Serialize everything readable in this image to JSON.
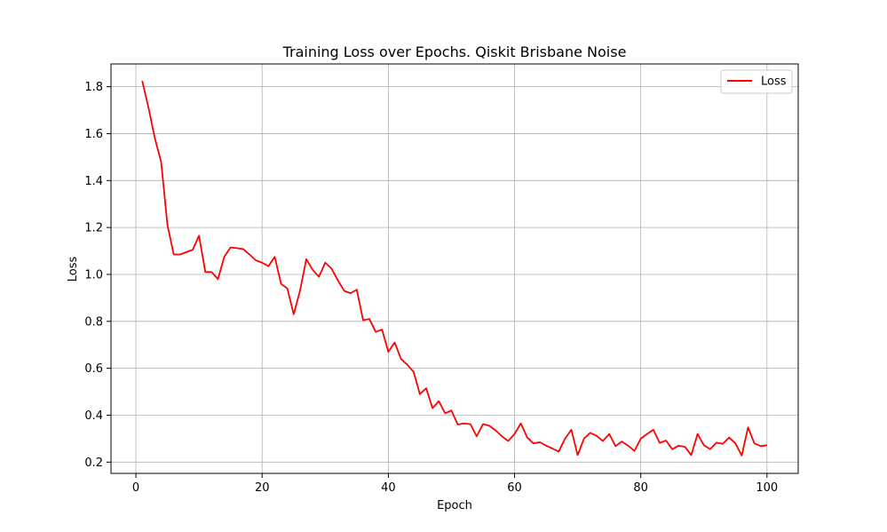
{
  "chart_data": {
    "type": "line",
    "title": "Training Loss over Epochs. Qiskit Brisbane Noise",
    "xlabel": "Epoch",
    "ylabel": "Loss",
    "xlim": [
      -3.95,
      104.95
    ],
    "ylim": [
      0.152,
      1.897
    ],
    "xticks": [
      0,
      20,
      40,
      60,
      80,
      100
    ],
    "yticks": [
      0.2,
      0.4,
      0.6,
      0.8,
      1.0,
      1.2,
      1.4,
      1.6,
      1.8
    ],
    "xtick_labels": [
      "0",
      "20",
      "40",
      "60",
      "80",
      "100"
    ],
    "ytick_labels": [
      "0.2",
      "0.4",
      "0.6",
      "0.8",
      "1.0",
      "1.2",
      "1.4",
      "1.6",
      "1.8"
    ],
    "grid": true,
    "legend": {
      "placement": "top-right",
      "entries": [
        "Loss"
      ]
    },
    "colors": {
      "Loss": "#ff0000"
    },
    "series": [
      {
        "name": "Loss",
        "x": [
          1,
          2,
          3,
          4,
          5,
          6,
          7,
          8,
          9,
          10,
          11,
          12,
          13,
          14,
          15,
          16,
          17,
          18,
          19,
          20,
          21,
          22,
          23,
          24,
          25,
          26,
          27,
          28,
          29,
          30,
          31,
          32,
          33,
          34,
          35,
          36,
          37,
          38,
          39,
          40,
          41,
          42,
          43,
          44,
          45,
          46,
          47,
          48,
          49,
          50,
          51,
          52,
          53,
          54,
          55,
          56,
          57,
          58,
          59,
          60,
          61,
          62,
          63,
          64,
          65,
          66,
          67,
          68,
          69,
          70,
          71,
          72,
          73,
          74,
          75,
          76,
          77,
          78,
          79,
          80,
          81,
          82,
          83,
          84,
          85,
          86,
          87,
          88,
          89,
          90,
          91,
          92,
          93,
          94,
          95,
          96,
          97,
          98,
          99,
          100
        ],
        "values": [
          1.825,
          1.71,
          1.58,
          1.48,
          1.21,
          1.085,
          1.085,
          1.095,
          1.105,
          1.165,
          1.01,
          1.01,
          0.98,
          1.075,
          1.115,
          1.112,
          1.108,
          1.085,
          1.06,
          1.05,
          1.035,
          1.075,
          0.96,
          0.94,
          0.83,
          0.93,
          1.065,
          1.02,
          0.99,
          1.05,
          1.025,
          0.975,
          0.93,
          0.92,
          0.935,
          0.805,
          0.81,
          0.755,
          0.765,
          0.67,
          0.71,
          0.64,
          0.615,
          0.585,
          0.49,
          0.515,
          0.43,
          0.46,
          0.408,
          0.42,
          0.36,
          0.365,
          0.362,
          0.31,
          0.362,
          0.355,
          0.335,
          0.31,
          0.29,
          0.32,
          0.365,
          0.305,
          0.28,
          0.285,
          0.27,
          0.258,
          0.245,
          0.3,
          0.338,
          0.23,
          0.3,
          0.325,
          0.312,
          0.29,
          0.32,
          0.268,
          0.288,
          0.27,
          0.248,
          0.3,
          0.32,
          0.338,
          0.282,
          0.292,
          0.255,
          0.27,
          0.265,
          0.23,
          0.32,
          0.272,
          0.255,
          0.283,
          0.278,
          0.305,
          0.28,
          0.228,
          0.348,
          0.28,
          0.268,
          0.272
        ]
      }
    ]
  }
}
